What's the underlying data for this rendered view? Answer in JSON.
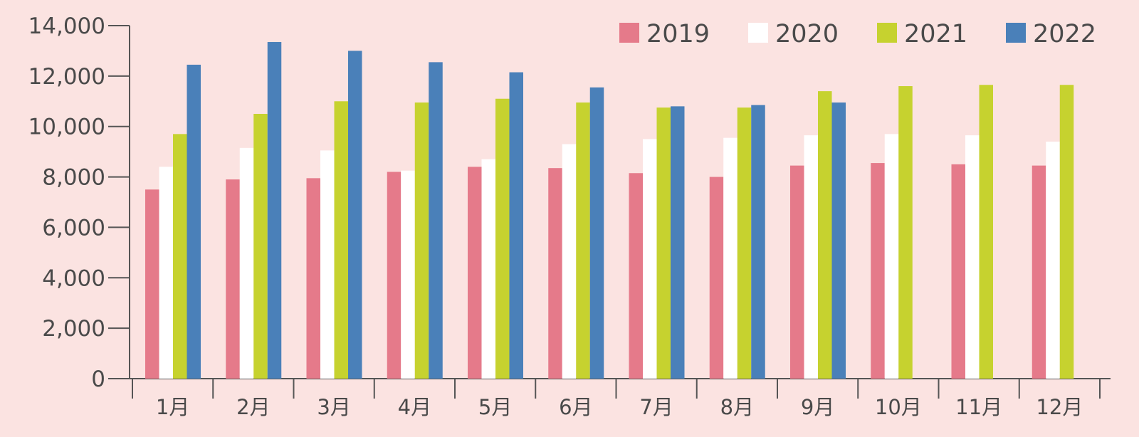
{
  "chart_data": {
    "type": "bar",
    "title": "",
    "xlabel": "",
    "ylabel": "",
    "ylim": [
      0,
      14000
    ],
    "yticks": [
      0,
      2000,
      4000,
      6000,
      8000,
      10000,
      12000,
      14000
    ],
    "ytick_labels": [
      "0",
      "2,000",
      "4,000",
      "6,000",
      "8,000",
      "10,000",
      "12,000",
      "14,000"
    ],
    "grid": false,
    "legend_position": "top-right",
    "categories": [
      "1月",
      "2月",
      "3月",
      "4月",
      "5月",
      "6月",
      "7月",
      "8月",
      "9月",
      "10月",
      "11月",
      "12月"
    ],
    "series": [
      {
        "name": "2019",
        "color": "#e57a8a",
        "values": [
          7500,
          7900,
          7950,
          8200,
          8400,
          8350,
          8150,
          8000,
          8450,
          8550,
          8500,
          8450
        ]
      },
      {
        "name": "2020",
        "color": "#ffffff",
        "values": [
          8400,
          9150,
          9050,
          8250,
          8700,
          9300,
          9500,
          9550,
          9650,
          9700,
          9650,
          9400
        ]
      },
      {
        "name": "2021",
        "color": "#c6d22f",
        "values": [
          9700,
          10500,
          11000,
          10950,
          11100,
          10950,
          10750,
          10750,
          11400,
          11600,
          11650,
          11650
        ]
      },
      {
        "name": "2022",
        "color": "#4a80b9",
        "values": [
          12450,
          13350,
          13000,
          12550,
          12150,
          11550,
          10800,
          10850,
          10950,
          null,
          null,
          null
        ]
      }
    ]
  }
}
